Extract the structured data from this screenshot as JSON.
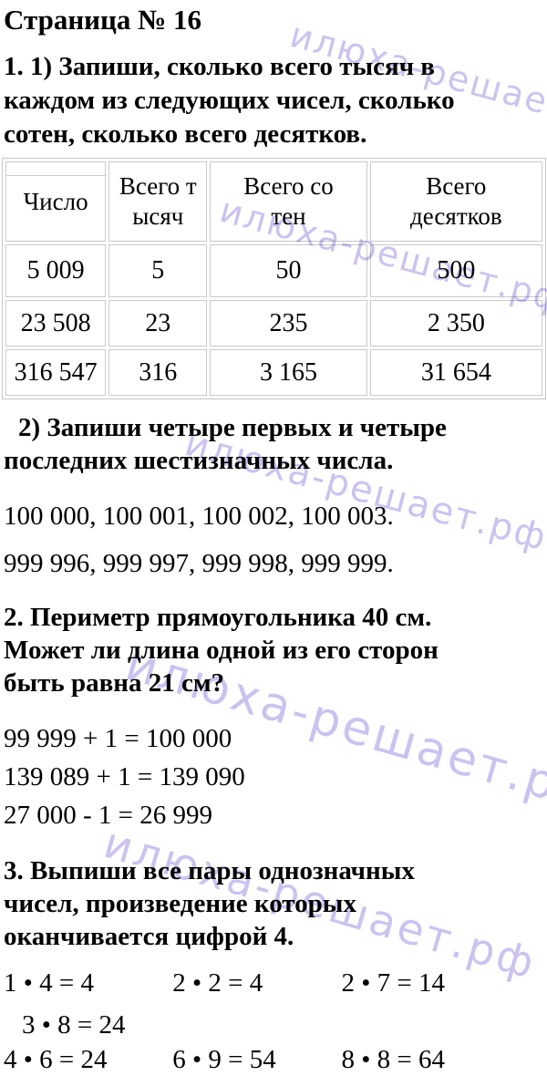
{
  "title": "Страница № 16",
  "watermark": {
    "color": "#ccc2f0",
    "instances": [
      "илюха-решает.рф",
      "илюха-решает.рф",
      "илюха-решает.рф",
      "илюха-решает.рф",
      "илюха-решает.рф"
    ]
  },
  "task1": {
    "statement_lines": [
      "1. 1) Запиши, сколько всего тысяч в",
      "каждом из следующих чисел, сколько",
      "сотен, сколько всего десятков."
    ],
    "table": {
      "headers": {
        "number": "Число",
        "thousands_line1": "Всего т",
        "thousands_line2": "ысяч",
        "hundreds_line1": "Всего со",
        "hundreds_line2": "тен",
        "tens_line1": "Всего",
        "tens_line2": "десятков"
      },
      "rows": [
        [
          "5 009",
          "5",
          "50",
          "500"
        ],
        [
          "23 508",
          "23",
          "235",
          "2 350"
        ],
        [
          "316 547",
          "316",
          "3 165",
          "31 654"
        ]
      ]
    },
    "part2_statement_lines": [
      "2) Запиши четыре первых и четыре",
      "последних шестизначных числа."
    ],
    "part2_answers": [
      "100 000, 100 001, 100 002, 100 003.",
      "999 996, 999 997, 999 998, 999 999."
    ]
  },
  "task2": {
    "statement_lines": [
      "2. Периметр прямоугольника 40 см.",
      "Может ли длина одной из его сторон",
      "быть равна 21 см?"
    ],
    "answers": [
      "99 999 + 1 = 100 000",
      "139 089 + 1 = 139 090",
      "27 000 - 1 = 26 999"
    ]
  },
  "task3": {
    "statement_lines": [
      "3. Выпиши все пары однозначных",
      "чисел, произведение которых",
      "оканчивается цифрой 4."
    ],
    "answer_rows": [
      [
        "1 • 4 = 4",
        "2 • 2 = 4",
        "2 • 7 = 14"
      ],
      [
        "3 • 8 = 24"
      ],
      [
        "4 • 6 = 24",
        "6 • 9 = 54",
        "8 • 8 = 64"
      ]
    ]
  }
}
